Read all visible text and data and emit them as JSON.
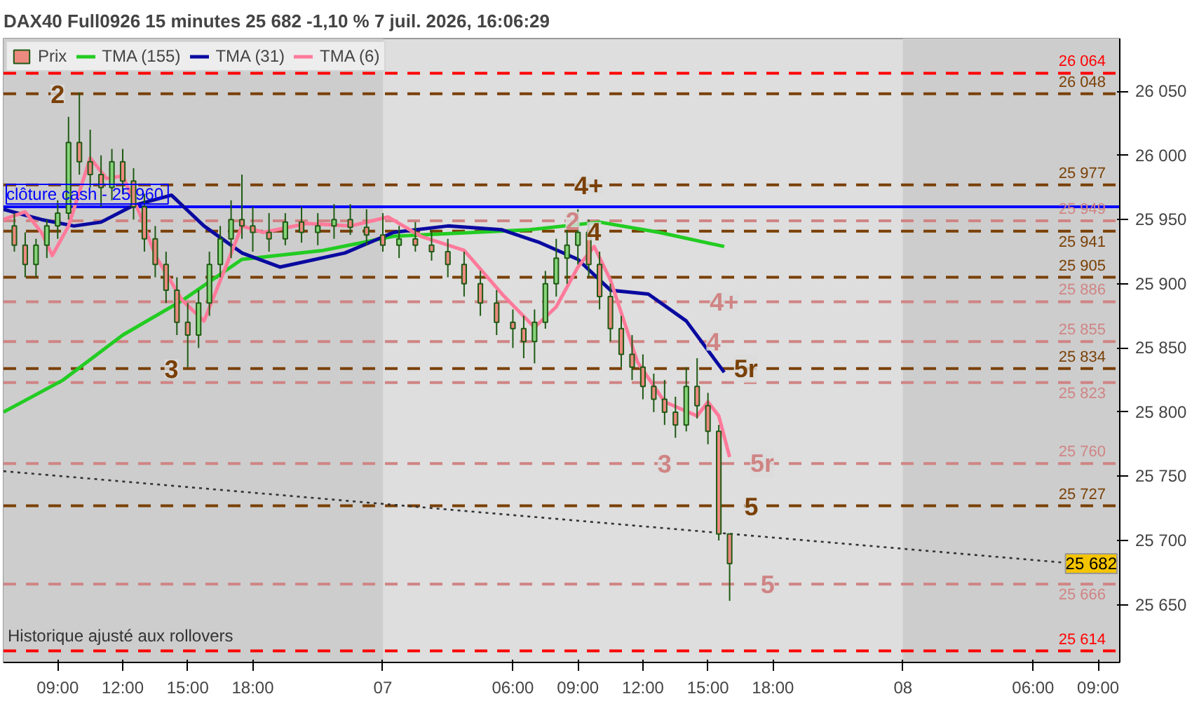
{
  "chart_data": {
    "type": "candlestick",
    "title": "DAX40 Full0926 15 minutes 25 682 -1,10 % 7 juil. 2026, 16:06:29",
    "xlim": [
      "2026-07-06T06:30",
      "2026-07-08T10:00"
    ],
    "ylim": [
      25605,
      26091
    ],
    "xticks": [
      {
        "value": "2026-07-06T09:00",
        "label": "09:00"
      },
      {
        "value": "2026-07-06T12:00",
        "label": "12:00"
      },
      {
        "value": "2026-07-06T15:00",
        "label": "15:00"
      },
      {
        "value": "2026-07-06T18:00",
        "label": "18:00"
      },
      {
        "value": "2026-07-07T00:00",
        "label": "07"
      },
      {
        "value": "2026-07-07T06:00",
        "label": "06:00"
      },
      {
        "value": "2026-07-07T09:00",
        "label": "09:00"
      },
      {
        "value": "2026-07-07T12:00",
        "label": "12:00"
      },
      {
        "value": "2026-07-07T15:00",
        "label": "15:00"
      },
      {
        "value": "2026-07-07T18:00",
        "label": "18:00"
      },
      {
        "value": "2026-07-08T00:00",
        "label": "08"
      },
      {
        "value": "2026-07-08T06:00",
        "label": "06:00"
      },
      {
        "value": "2026-07-08T09:00",
        "label": "09:00"
      }
    ],
    "yticks": [
      {
        "value": 25650,
        "label": "25 650"
      },
      {
        "value": 25700,
        "label": "25 700"
      },
      {
        "value": 25750,
        "label": "25 750"
      },
      {
        "value": 25800,
        "label": "25 800"
      },
      {
        "value": 25850,
        "label": "25 850"
      },
      {
        "value": 25900,
        "label": "25 900"
      },
      {
        "value": 25950,
        "label": "25 950"
      },
      {
        "value": 26000,
        "label": "26 000"
      },
      {
        "value": 26050,
        "label": "26 050"
      }
    ],
    "legend": "top left",
    "series": [
      {
        "name": "Prix",
        "color": "#1f5a14",
        "x": [
          "2026-07-06T07:00",
          "2026-07-06T07:30",
          "2026-07-06T08:00",
          "2026-07-06T08:30",
          "2026-07-06T09:00",
          "2026-07-06T09:30",
          "2026-07-06T10:00",
          "2026-07-06T10:30",
          "2026-07-06T11:00",
          "2026-07-06T11:30",
          "2026-07-06T12:00",
          "2026-07-06T12:30",
          "2026-07-06T13:00",
          "2026-07-06T13:30",
          "2026-07-06T14:00",
          "2026-07-06T14:30",
          "2026-07-06T15:00",
          "2026-07-06T15:30",
          "2026-07-06T16:00",
          "2026-07-06T16:30",
          "2026-07-06T17:00",
          "2026-07-06T17:30",
          "2026-07-06T18:00",
          "2026-07-06T18:45",
          "2026-07-06T19:30",
          "2026-07-06T20:15",
          "2026-07-06T21:00",
          "2026-07-06T21:45",
          "2026-07-06T22:30",
          "2026-07-06T23:15",
          "2026-07-07T00:00",
          "2026-07-07T00:45",
          "2026-07-07T01:30",
          "2026-07-07T02:15",
          "2026-07-07T03:00",
          "2026-07-07T03:45",
          "2026-07-07T04:30",
          "2026-07-07T05:15",
          "2026-07-07T06:00",
          "2026-07-07T06:30",
          "2026-07-07T07:00",
          "2026-07-07T07:30",
          "2026-07-07T08:00",
          "2026-07-07T08:30",
          "2026-07-07T09:00",
          "2026-07-07T09:30",
          "2026-07-07T10:00",
          "2026-07-07T10:30",
          "2026-07-07T11:00",
          "2026-07-07T11:30",
          "2026-07-07T12:00",
          "2026-07-07T12:30",
          "2026-07-07T13:00",
          "2026-07-07T13:30",
          "2026-07-07T14:00",
          "2026-07-07T14:30",
          "2026-07-07T15:00",
          "2026-07-07T15:30",
          "2026-07-07T16:00"
        ],
        "ohlc": [
          [
            25945,
            25955,
            25925,
            25930
          ],
          [
            25930,
            25940,
            25905,
            25915
          ],
          [
            25915,
            25935,
            25905,
            25930
          ],
          [
            25930,
            25950,
            25920,
            25945
          ],
          [
            25945,
            25965,
            25935,
            25955
          ],
          [
            25955,
            26030,
            25950,
            26010
          ],
          [
            26010,
            26049,
            25985,
            25995
          ],
          [
            25995,
            26020,
            25975,
            25985
          ],
          [
            25985,
            26000,
            25960,
            25975
          ],
          [
            25975,
            26005,
            25965,
            25995
          ],
          [
            25995,
            26005,
            25970,
            25980
          ],
          [
            25980,
            25990,
            25950,
            25960
          ],
          [
            25960,
            25970,
            25925,
            25935
          ],
          [
            25935,
            25945,
            25905,
            25915
          ],
          [
            25915,
            25925,
            25885,
            25895
          ],
          [
            25895,
            25905,
            25860,
            25870
          ],
          [
            25870,
            25885,
            25835,
            25860
          ],
          [
            25860,
            25895,
            25850,
            25885
          ],
          [
            25885,
            25925,
            25875,
            25915
          ],
          [
            25915,
            25945,
            25905,
            25935
          ],
          [
            25935,
            25965,
            25920,
            25950
          ],
          [
            25950,
            25985,
            25935,
            25945
          ],
          [
            25945,
            25960,
            25925,
            25940
          ],
          [
            25940,
            25955,
            25925,
            25935
          ],
          [
            25935,
            25955,
            25930,
            25948
          ],
          [
            25948,
            25960,
            25932,
            25940
          ],
          [
            25940,
            25955,
            25930,
            25945
          ],
          [
            25945,
            25962,
            25935,
            25950
          ],
          [
            25950,
            25962,
            25938,
            25944
          ],
          [
            25944,
            25958,
            25930,
            25938
          ],
          [
            25938,
            25955,
            25925,
            25930
          ],
          [
            25930,
            25945,
            25920,
            25935
          ],
          [
            25935,
            25948,
            25925,
            25930
          ],
          [
            25930,
            25942,
            25918,
            25925
          ],
          [
            25925,
            25935,
            25905,
            25915
          ],
          [
            25915,
            25925,
            25890,
            25900
          ],
          [
            25900,
            25910,
            25875,
            25885
          ],
          [
            25885,
            25895,
            25860,
            25870
          ],
          [
            25870,
            25880,
            25850,
            25865
          ],
          [
            25865,
            25875,
            25842,
            25855
          ],
          [
            25855,
            25880,
            25838,
            25870
          ],
          [
            25870,
            25910,
            25865,
            25900
          ],
          [
            25900,
            25935,
            25890,
            25920
          ],
          [
            25920,
            25945,
            25900,
            25930
          ],
          [
            25930,
            25958,
            25915,
            25940
          ],
          [
            25940,
            25950,
            25905,
            25915
          ],
          [
            25915,
            25925,
            25880,
            25890
          ],
          [
            25890,
            25900,
            25855,
            25865
          ],
          [
            25865,
            25875,
            25835,
            25845
          ],
          [
            25845,
            25860,
            25825,
            25835
          ],
          [
            25835,
            25845,
            25810,
            25820
          ],
          [
            25820,
            25830,
            25800,
            25810
          ],
          [
            25810,
            25825,
            25790,
            25800
          ],
          [
            25800,
            25812,
            25780,
            25790
          ],
          [
            25790,
            25835,
            25785,
            25820
          ],
          [
            25820,
            25842,
            25795,
            25805
          ],
          [
            25805,
            25815,
            25775,
            25785
          ],
          [
            25785,
            25790,
            25700,
            25705
          ],
          [
            25705,
            25705,
            25653,
            25682
          ]
        ]
      },
      {
        "name": "TMA (155)",
        "type": "line",
        "color": "#22cc22",
        "x": [
          "2026-07-06T06:30",
          "2026-07-06T09:15",
          "2026-07-06T12:00",
          "2026-07-06T14:45",
          "2026-07-06T17:30",
          "2026-07-06T21:15",
          "2026-07-07T00:30",
          "2026-07-07T06:45",
          "2026-07-07T10:00",
          "2026-07-07T12:45",
          "2026-07-07T15:45"
        ],
        "values": [
          25800,
          25825,
          25860,
          25887,
          25919,
          25926,
          25937,
          25942,
          25948,
          25940,
          25929
        ]
      },
      {
        "name": "TMA (31)",
        "type": "line",
        "color": "#0a0aa0",
        "x": [
          "2026-07-06T06:30",
          "2026-07-06T08:15",
          "2026-07-06T09:45",
          "2026-07-06T11:00",
          "2026-07-06T12:30",
          "2026-07-06T14:15",
          "2026-07-06T15:45",
          "2026-07-06T17:30",
          "2026-07-06T19:15",
          "2026-07-06T22:15",
          "2026-07-07T00:30",
          "2026-07-07T03:00",
          "2026-07-07T05:30",
          "2026-07-07T07:15",
          "2026-07-07T09:00",
          "2026-07-07T10:30",
          "2026-07-07T12:15",
          "2026-07-07T14:00",
          "2026-07-07T15:45"
        ],
        "values": [
          25958,
          25950,
          25945,
          25948,
          25961,
          25969,
          25945,
          25924,
          25913,
          25924,
          25940,
          25945,
          25942,
          25932,
          25919,
          25895,
          25892,
          25871,
          25831
        ]
      },
      {
        "name": "TMA (6)",
        "type": "line",
        "color": "#ff7a9a",
        "x": [
          "2026-07-06T06:30",
          "2026-07-06T07:30",
          "2026-07-06T08:15",
          "2026-07-06T08:45",
          "2026-07-06T09:30",
          "2026-07-06T10:30",
          "2026-07-06T11:15",
          "2026-07-06T12:00",
          "2026-07-06T12:45",
          "2026-07-06T13:30",
          "2026-07-06T14:45",
          "2026-07-06T15:45",
          "2026-07-06T16:45",
          "2026-07-06T17:30",
          "2026-07-06T18:30",
          "2026-07-06T20:30",
          "2026-07-06T22:30",
          "2026-07-07T00:15",
          "2026-07-07T01:45",
          "2026-07-07T03:45",
          "2026-07-07T05:30",
          "2026-07-07T07:00",
          "2026-07-07T08:00",
          "2026-07-07T09:00",
          "2026-07-07T09:45",
          "2026-07-07T10:30",
          "2026-07-07T11:45",
          "2026-07-07T13:00",
          "2026-07-07T14:30",
          "2026-07-07T15:00",
          "2026-07-07T15:30",
          "2026-07-07T16:00"
        ],
        "values": [
          25950,
          25956,
          25940,
          25922,
          25945,
          25998,
          25982,
          25984,
          25956,
          25922,
          25887,
          25871,
          25913,
          25945,
          25940,
          25947,
          25945,
          25952,
          25937,
          25926,
          25892,
          25866,
          25882,
          25913,
          25929,
          25903,
          25839,
          25808,
          25797,
          25808,
          25797,
          25765
        ]
      },
      {
        "type": "line",
        "color": "#333333",
        "line_style": "dotted",
        "x": [
          "2026-07-06T06:30",
          "2026-07-08T10:00"
        ],
        "values": [
          25754,
          25679
        ]
      }
    ],
    "ref_lines": [
      {
        "axis": "y",
        "value": 26064,
        "label": "26 064",
        "color": "#ff0000",
        "line_style": "dashed"
      },
      {
        "axis": "y",
        "value": 26048,
        "label": "26 048",
        "color": "#7a4006",
        "line_style": "dashed"
      },
      {
        "axis": "y",
        "value": 25977,
        "label": "25 977",
        "color": "#7a4006",
        "line_style": "dashed"
      },
      {
        "axis": "y",
        "value": 25960,
        "label": "clôture cash -  25 960",
        "color": "#0000ff",
        "line_style": "solid"
      },
      {
        "axis": "y",
        "value": 25949,
        "label": "25 949",
        "color": "#d08484",
        "line_style": "dashed"
      },
      {
        "axis": "y",
        "value": 25941,
        "label": "25 941",
        "color": "#7a4006",
        "line_style": "dashed"
      },
      {
        "axis": "y",
        "value": 25905,
        "label": "25 905",
        "color": "#7a4006",
        "line_style": "dashed"
      },
      {
        "axis": "y",
        "value": 25886,
        "label": "25 886",
        "color": "#d08484",
        "line_style": "dashed"
      },
      {
        "axis": "y",
        "value": 25855,
        "label": "25 855",
        "color": "#d08484",
        "line_style": "dashed"
      },
      {
        "axis": "y",
        "value": 25834,
        "label": "25 834",
        "color": "#7a4006",
        "line_style": "dashed"
      },
      {
        "axis": "y",
        "value": 25823,
        "label": "25 823",
        "color": "#d08484",
        "line_style": "dashed"
      },
      {
        "axis": "y",
        "value": 25760,
        "label": "25 760",
        "color": "#d08484",
        "line_style": "dashed"
      },
      {
        "axis": "y",
        "value": 25727,
        "label": "25 727",
        "color": "#7a4006",
        "line_style": "dashed"
      },
      {
        "axis": "y",
        "value": 25666,
        "label": "25 666",
        "color": "#d08484",
        "line_style": "dashed"
      },
      {
        "axis": "y",
        "value": 25614,
        "label": "25 614",
        "color": "#ff0000",
        "line_style": "dashed"
      }
    ],
    "bands": [
      {
        "axis": "x",
        "from": "2026-07-06T06:30",
        "to": "2026-07-07T00:00",
        "color": "#cdcdcd"
      },
      {
        "axis": "x",
        "from": "2026-07-08T00:00",
        "to": "2026-07-08T10:00",
        "color": "#cdcdcd"
      }
    ],
    "annotations": [
      {
        "text": "2",
        "x": "2026-07-06T09:00",
        "y": 26048
      },
      {
        "text": "3",
        "x": "2026-07-06T14:15",
        "y": 25834
      },
      {
        "text": "4+",
        "x": "2026-07-07T09:30",
        "y": 25977
      },
      {
        "text": "2",
        "x": "2026-07-07T08:45",
        "y": 25949
      },
      {
        "text": "4",
        "x": "2026-07-07T09:45",
        "y": 25941
      },
      {
        "text": "4+",
        "x": "2026-07-07T15:45",
        "y": 25886
      },
      {
        "text": "4",
        "x": "2026-07-07T15:15",
        "y": 25855
      },
      {
        "text": "5r",
        "x": "2026-07-07T16:45",
        "y": 25834
      },
      {
        "text": "3",
        "x": "2026-07-07T13:00",
        "y": 25760
      },
      {
        "text": "5r",
        "x": "2026-07-07T17:30",
        "y": 25760
      },
      {
        "text": "5",
        "x": "2026-07-07T17:00",
        "y": 25727
      },
      {
        "text": "5",
        "x": "2026-07-07T17:45",
        "y": 25666
      },
      {
        "text": "25 682",
        "x": "2026-07-08T10:00",
        "y": 25682
      },
      "Historique ajusté aux rollovers"
    ]
  }
}
